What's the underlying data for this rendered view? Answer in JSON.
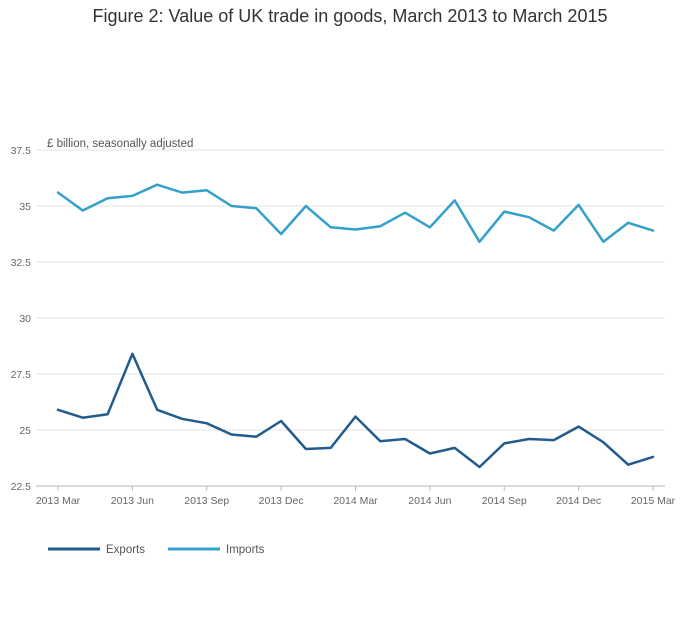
{
  "chart_data": {
    "type": "line",
    "title": "Figure 2: Value of UK trade in goods, March 2013 to March 2015",
    "unit_label": "£ billion, seasonally adjusted",
    "x": [
      "2013 Mar",
      "2013 Apr",
      "2013 May",
      "2013 Jun",
      "2013 Jul",
      "2013 Aug",
      "2013 Sep",
      "2013 Oct",
      "2013 Nov",
      "2013 Dec",
      "2014 Jan",
      "2014 Feb",
      "2014 Mar",
      "2014 Apr",
      "2014 May",
      "2014 Jun",
      "2014 Jul",
      "2014 Aug",
      "2014 Sep",
      "2014 Oct",
      "2014 Nov",
      "2014 Dec",
      "2015 Jan",
      "2015 Feb",
      "2015 Mar"
    ],
    "x_tick_labels": [
      "2013 Mar",
      "2013 Jun",
      "2013 Sep",
      "2013 Dec",
      "2014 Mar",
      "2014 Jun",
      "2014 Sep",
      "2014 Dec",
      "2015 Mar"
    ],
    "y_ticks": [
      22.5,
      25,
      27.5,
      30,
      32.5,
      35,
      37.5
    ],
    "y_tick_labels": [
      "22.5",
      "25",
      "27.5",
      "30",
      "32.5",
      "35",
      "37.5"
    ],
    "ylim": [
      22.5,
      37.5
    ],
    "grid": true,
    "legend_position": "bottom-left",
    "series": [
      {
        "name": "Exports",
        "color": "#235b8c",
        "values": [
          25.9,
          25.55,
          25.7,
          28.4,
          25.9,
          25.5,
          25.3,
          24.8,
          24.7,
          25.4,
          24.15,
          24.2,
          25.6,
          24.5,
          24.6,
          23.95,
          24.2,
          23.35,
          24.4,
          24.6,
          24.55,
          25.15,
          24.45,
          23.45,
          23.8
        ]
      },
      {
        "name": "Imports",
        "color": "#34a1cc",
        "values": [
          35.6,
          34.8,
          35.35,
          35.45,
          35.95,
          35.6,
          35.7,
          35.0,
          34.9,
          33.75,
          35.0,
          34.05,
          33.95,
          34.1,
          34.7,
          34.05,
          35.25,
          33.4,
          34.75,
          34.5,
          33.9,
          35.05,
          33.4,
          34.25,
          33.9
        ]
      }
    ]
  }
}
